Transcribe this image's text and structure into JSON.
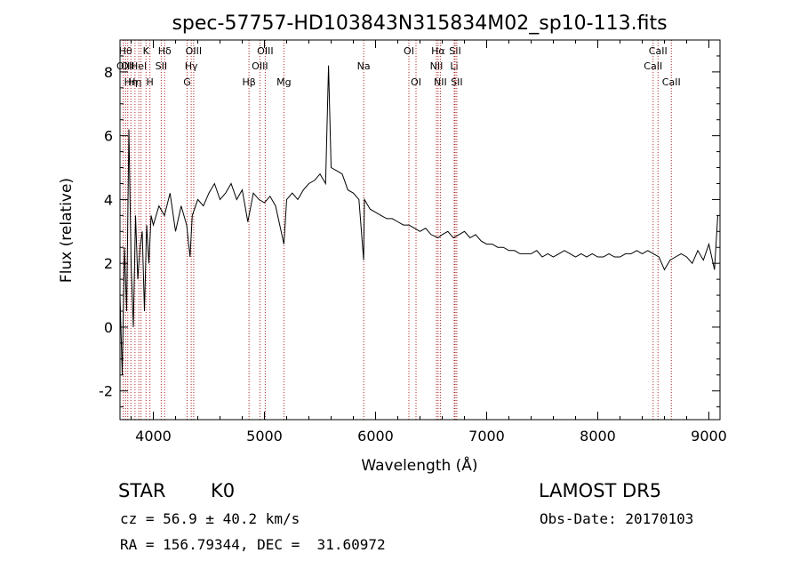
{
  "chart_data": {
    "type": "line",
    "title": "spec-57757-HD103843N315834M02_sp10-113.fits",
    "xlabel": "Wavelength (Å)",
    "ylabel": "Flux (relative)",
    "xlim": [
      3700,
      9100
    ],
    "ylim": [
      -2.9,
      9.0
    ],
    "xticks": [
      4000,
      5000,
      6000,
      7000,
      8000,
      9000
    ],
    "yticks": [
      -2,
      0,
      2,
      4,
      6,
      8
    ],
    "grid": false,
    "line_color": "#000000",
    "marker_color": "#b22222",
    "series": [
      {
        "x": [
          3700,
          3720,
          3740,
          3760,
          3780,
          3800,
          3820,
          3840,
          3860,
          3880,
          3900,
          3920,
          3940,
          3960,
          3980,
          4000,
          4050,
          4100,
          4150,
          4200,
          4250,
          4300,
          4330,
          4350,
          4400,
          4450,
          4500,
          4550,
          4600,
          4650,
          4700,
          4750,
          4800,
          4850,
          4900,
          4950,
          5000,
          5050,
          5100,
          5150,
          5175,
          5200,
          5250,
          5300,
          5350,
          5400,
          5450,
          5500,
          5550,
          5577,
          5600,
          5650,
          5700,
          5750,
          5800,
          5850,
          5893,
          5900,
          5950,
          6000,
          6050,
          6100,
          6150,
          6200,
          6250,
          6300,
          6350,
          6400,
          6450,
          6500,
          6563,
          6600,
          6650,
          6700,
          6750,
          6800,
          6850,
          6900,
          6950,
          7000,
          7050,
          7100,
          7150,
          7200,
          7250,
          7300,
          7350,
          7400,
          7450,
          7500,
          7550,
          7600,
          7650,
          7700,
          7750,
          7800,
          7850,
          7900,
          7950,
          8000,
          8050,
          8100,
          8150,
          8200,
          8250,
          8300,
          8350,
          8400,
          8450,
          8500,
          8550,
          8600,
          8650,
          8700,
          8750,
          8800,
          8850,
          8900,
          8950,
          9000,
          9050,
          9080
        ],
        "y": [
          1.0,
          -1.5,
          2.5,
          0.5,
          6.2,
          2.0,
          0.0,
          3.5,
          1.5,
          2.5,
          3.0,
          0.5,
          3.2,
          2.0,
          3.5,
          3.2,
          3.8,
          3.5,
          4.2,
          3.0,
          3.8,
          3.2,
          2.2,
          3.5,
          4.0,
          3.8,
          4.2,
          4.5,
          4.0,
          4.2,
          4.5,
          4.0,
          4.3,
          3.3,
          4.2,
          4.0,
          3.9,
          4.1,
          3.8,
          3.0,
          2.6,
          4.0,
          4.2,
          4.0,
          4.3,
          4.5,
          4.6,
          4.8,
          4.5,
          8.2,
          5.0,
          4.9,
          4.8,
          4.3,
          4.2,
          4.0,
          2.1,
          4.0,
          3.7,
          3.6,
          3.5,
          3.4,
          3.4,
          3.3,
          3.2,
          3.2,
          3.1,
          3.0,
          3.1,
          2.9,
          2.8,
          2.9,
          3.0,
          2.8,
          2.9,
          3.0,
          2.8,
          2.9,
          2.7,
          2.6,
          2.6,
          2.5,
          2.5,
          2.4,
          2.4,
          2.3,
          2.3,
          2.3,
          2.4,
          2.2,
          2.3,
          2.2,
          2.3,
          2.4,
          2.3,
          2.2,
          2.3,
          2.2,
          2.3,
          2.2,
          2.2,
          2.3,
          2.2,
          2.2,
          2.3,
          2.3,
          2.4,
          2.3,
          2.4,
          2.3,
          2.2,
          1.8,
          2.1,
          2.2,
          2.3,
          2.2,
          2.0,
          2.4,
          2.1,
          2.6,
          1.8,
          3.5
        ]
      }
    ],
    "markers": [
      {
        "x": 3729,
        "label": "OII",
        "row": 2
      },
      {
        "x": 3750,
        "label": "Hθ",
        "row": 1
      },
      {
        "x": 3770,
        "label": "OII",
        "row": 2
      },
      {
        "x": 3798,
        "label": "Hη",
        "row": 3
      },
      {
        "x": 3835,
        "label": "Hη",
        "row": 3
      },
      {
        "x": 3869,
        "label": "HeI",
        "row": 2
      },
      {
        "x": 3889,
        "label": "",
        "row": 1
      },
      {
        "x": 3934,
        "label": "K",
        "row": 1
      },
      {
        "x": 3969,
        "label": "H",
        "row": 3
      },
      {
        "x": 4071,
        "label": "SII",
        "row": 2
      },
      {
        "x": 4102,
        "label": "Hδ",
        "row": 1
      },
      {
        "x": 4304,
        "label": "G",
        "row": 3
      },
      {
        "x": 4341,
        "label": "Hγ",
        "row": 2
      },
      {
        "x": 4363,
        "label": "OIII",
        "row": 1
      },
      {
        "x": 4861,
        "label": "Hβ",
        "row": 3
      },
      {
        "x": 4959,
        "label": "OIII",
        "row": 2
      },
      {
        "x": 5007,
        "label": "OIII",
        "row": 1
      },
      {
        "x": 5175,
        "label": "Mg",
        "row": 3
      },
      {
        "x": 5893,
        "label": "Na",
        "row": 2
      },
      {
        "x": 6300,
        "label": "OI",
        "row": 1
      },
      {
        "x": 6364,
        "label": "OI",
        "row": 3
      },
      {
        "x": 6548,
        "label": "NII",
        "row": 2
      },
      {
        "x": 6563,
        "label": "Hα",
        "row": 1
      },
      {
        "x": 6583,
        "label": "NII",
        "row": 3
      },
      {
        "x": 6708,
        "label": "Li",
        "row": 2
      },
      {
        "x": 6716,
        "label": "SII",
        "row": 1
      },
      {
        "x": 6731,
        "label": "SII",
        "row": 3
      },
      {
        "x": 8498,
        "label": "CaII",
        "row": 2
      },
      {
        "x": 8542,
        "label": "CaII",
        "row": 1
      },
      {
        "x": 8662,
        "label": "CaII",
        "row": 3
      }
    ]
  },
  "info": {
    "class": "STAR",
    "subclass": "K0",
    "survey": "LAMOST DR5",
    "cz": "cz = 56.9 ± 40.2 km/s",
    "obs_date": "Obs-Date: 20170103",
    "coords": "RA = 156.79344, DEC =  31.60972"
  }
}
